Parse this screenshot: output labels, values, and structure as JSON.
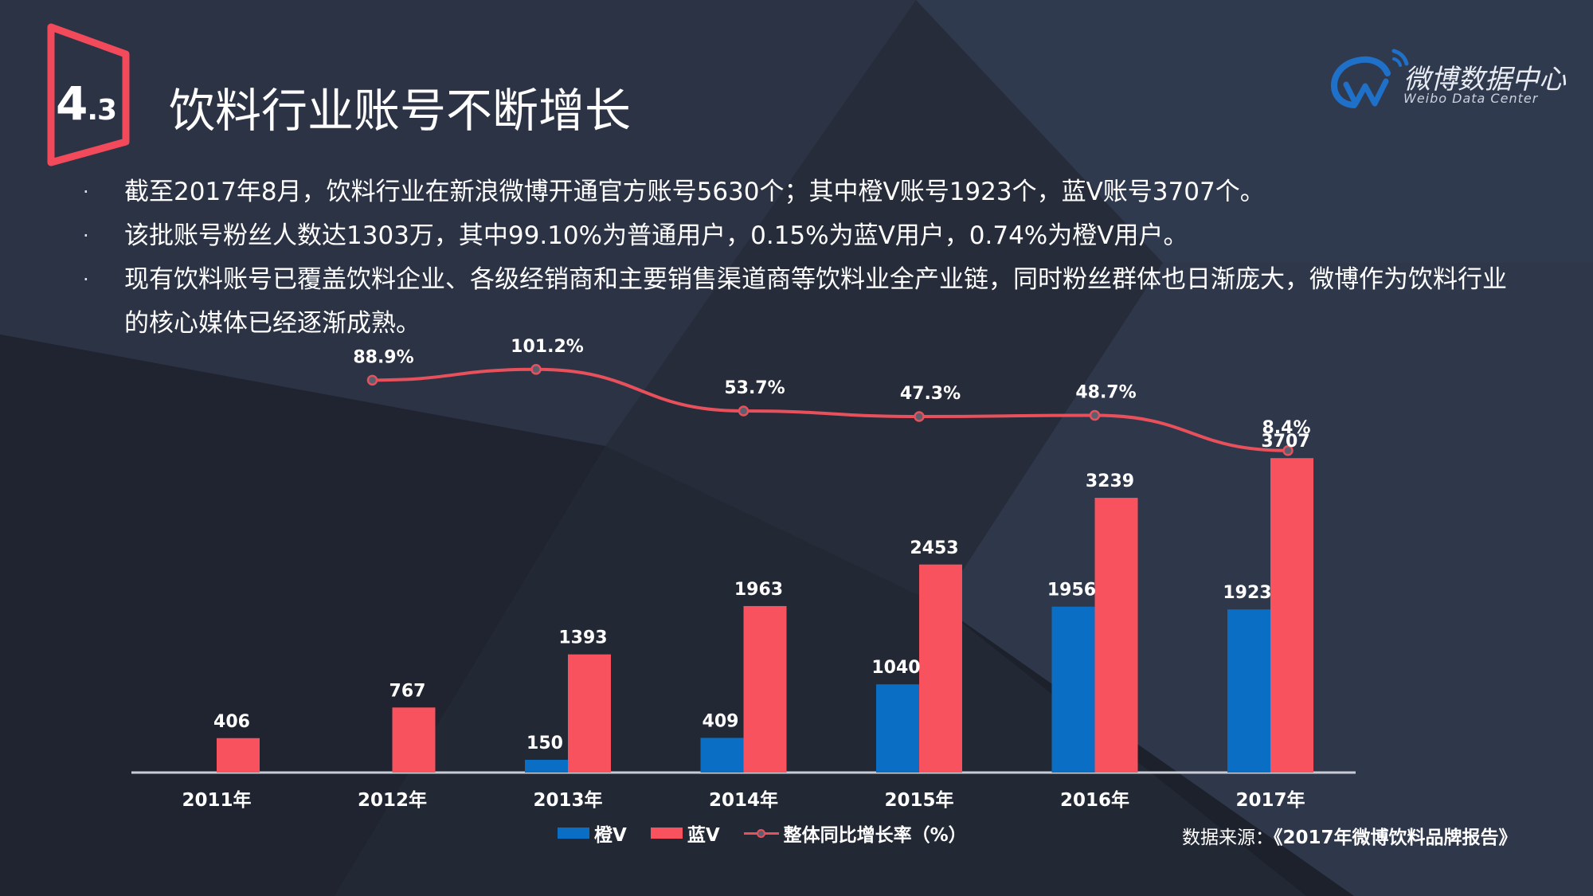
{
  "header": {
    "section_number": "4",
    "section_sub": ".3",
    "title": "饮料行业账号不断增长"
  },
  "logo": {
    "name": "微博数据中心",
    "subtitle": "Weibo Data Center"
  },
  "bullets": [
    {
      "marker": "·",
      "text": "截至2017年8月，饮料行业在新浪微博开通官方账号5630个；其中橙V账号1923个，蓝V账号3707个。"
    },
    {
      "marker": "·",
      "text": "该批账号粉丝人数达1303万，其中99.10%为普通用户，0.15%为蓝V用户，0.74%为橙V用户。"
    },
    {
      "marker": "·",
      "text": "现有饮料账号已覆盖饮料企业、各级经销商和主要销售渠道商等饮料业全产业链，同时粉丝群体也日渐庞大，微博作为饮料行业的核心媒体已经逐渐成熟。"
    }
  ],
  "chart_data": {
    "type": "bar",
    "categories": [
      "2011年",
      "2012年",
      "2013年",
      "2014年",
      "2015年",
      "2016年",
      "2017年"
    ],
    "series": [
      {
        "name": "橙V",
        "type": "bar",
        "color": "#0a6fc4",
        "values": [
          null,
          null,
          150,
          409,
          1040,
          1956,
          1923
        ]
      },
      {
        "name": "蓝V",
        "type": "bar",
        "color": "#f7525e",
        "values": [
          406,
          767,
          1393,
          1963,
          2453,
          3239,
          3707
        ]
      },
      {
        "name": "整体同比增长率（%）",
        "type": "line",
        "color": "#e8505c",
        "values": [
          null,
          88.9,
          101.2,
          53.7,
          47.3,
          48.7,
          8.4
        ]
      }
    ],
    "bar_labels": [
      "406",
      "767",
      "1393",
      "1963",
      "2453",
      "3239",
      "3707"
    ],
    "orange_labels": [
      "",
      "",
      "150",
      "409",
      "1040",
      "1956",
      "1923"
    ],
    "line_labels": [
      "",
      "88.9%",
      "101.2%",
      "53.7%",
      "47.3%",
      "48.7%",
      "8.4%"
    ],
    "ylim": [
      0,
      4000
    ],
    "grid": false,
    "legend_position": "bottom"
  },
  "source": {
    "prefix": "数据来源：",
    "name": "《2017年微博饮料品牌报告》"
  }
}
